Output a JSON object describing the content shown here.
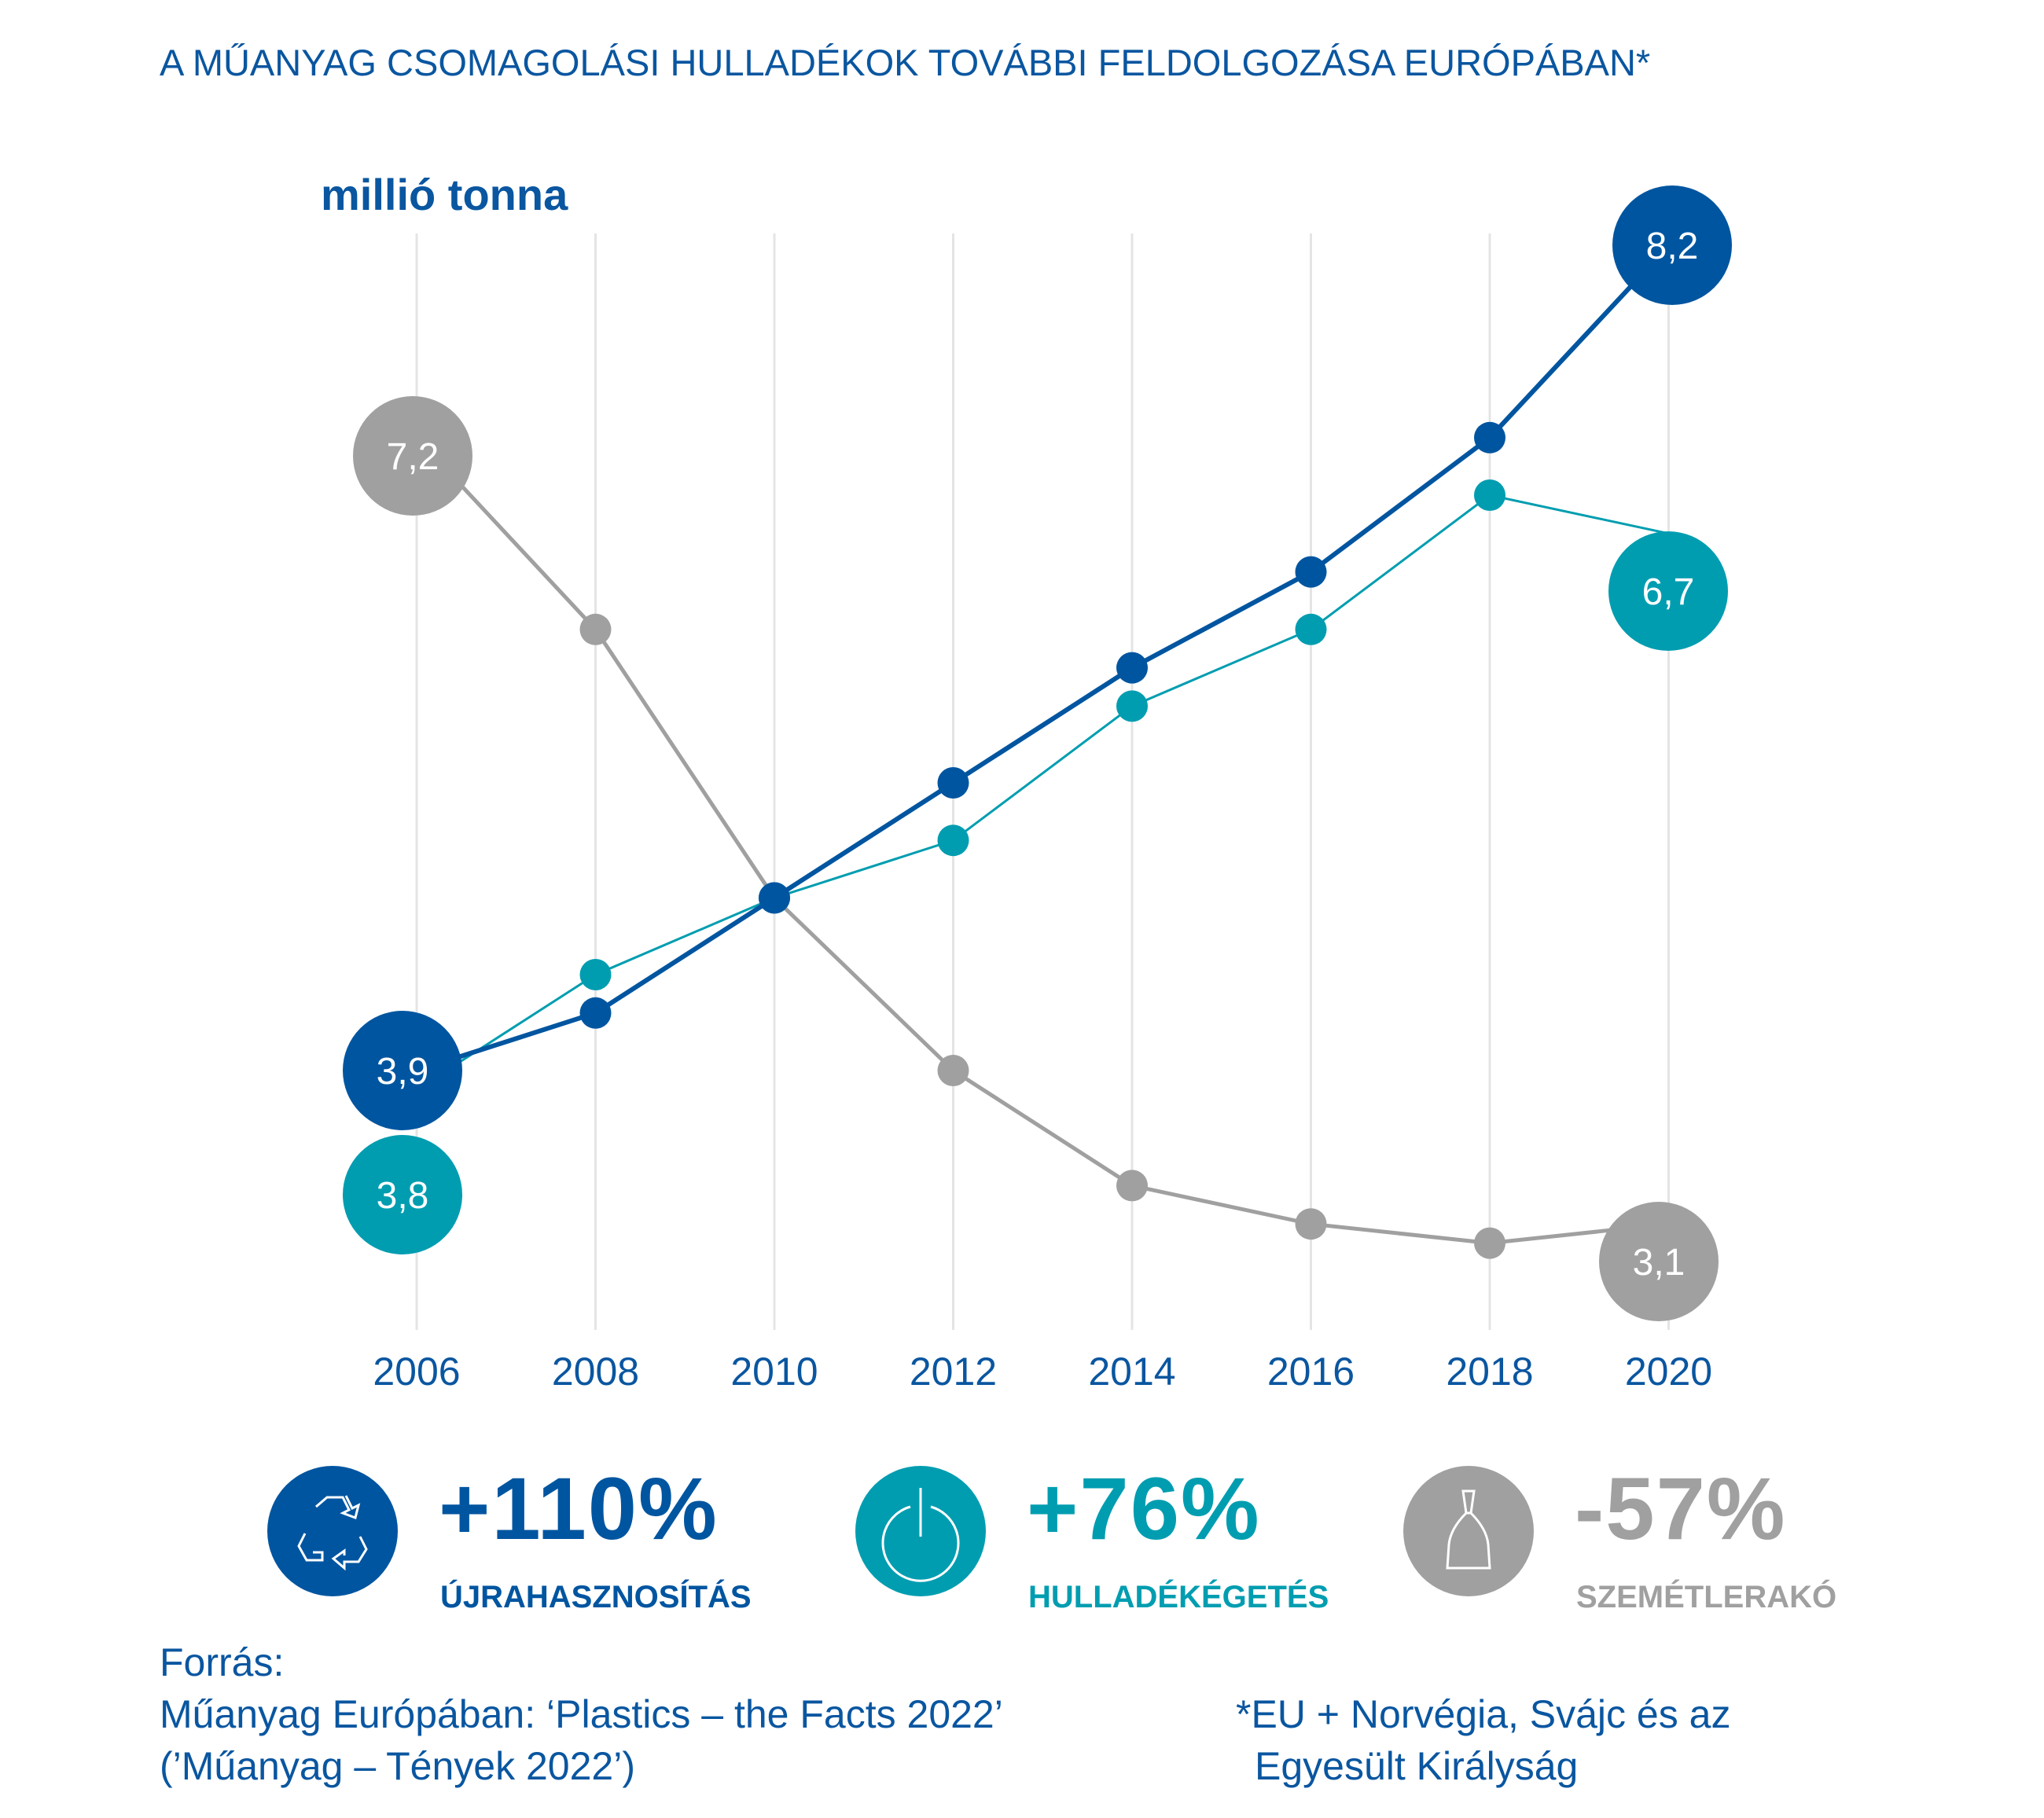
{
  "title": "A MŰANYAG CSOMAGOLÁSI HULLADÉKOK TOVÁBBI FELDOLGOZÁSA EURÓPÁBAN*",
  "colors": {
    "recycling": "#0055a0",
    "incineration": "#009db0",
    "landfill": "#a0a0a0",
    "grid": "#e4e4e4"
  },
  "chart_data": {
    "type": "line",
    "ylabel": "millió tonna",
    "x": [
      "2006",
      "2008",
      "2010",
      "2012",
      "2014",
      "2016",
      "2018",
      "2020"
    ],
    "grid": true,
    "series": [
      {
        "name": "ÚJRAHASZNOSÍTÁS",
        "key": "recycling",
        "values": [
          3.9,
          4.2,
          4.8,
          5.4,
          6.0,
          6.5,
          7.2,
          8.2
        ]
      },
      {
        "name": "HULLADÉKÉGETÉS",
        "key": "incineration",
        "values": [
          3.8,
          4.4,
          4.8,
          5.1,
          5.8,
          6.2,
          6.9,
          6.7
        ]
      },
      {
        "name": "SZEMÉTLERAKÓ",
        "key": "landfill",
        "values": [
          7.2,
          6.2,
          4.8,
          3.9,
          3.3,
          3.1,
          3.0,
          3.1
        ]
      }
    ],
    "labels": [
      {
        "series": "landfill",
        "text": "7,2"
      },
      {
        "series": "recycling",
        "text": "3,9"
      },
      {
        "series": "incineration",
        "text": "3,8"
      },
      {
        "series": "recycling",
        "text": "8,2"
      },
      {
        "series": "incineration",
        "text": "6,7"
      },
      {
        "series": "landfill",
        "text": "3,1"
      }
    ]
  },
  "stats": [
    {
      "icon": "recycle-icon",
      "value": "+110%",
      "label": "ÚJRAHASZNOSÍTÁS"
    },
    {
      "icon": "power-icon",
      "value": "+76%",
      "label": "HULLADÉKÉGETÉS"
    },
    {
      "icon": "trash-bag-icon",
      "value": "-57%",
      "label": "SZEMÉTLERAKÓ"
    }
  ],
  "source": {
    "heading": "Forrás:",
    "line1": "Műanyag Európában: ‘Plastics – the Facts 2022’",
    "line2": "(’Műanyag – Tények 2022’)"
  },
  "footnote": {
    "line1": "*EU + Norvégia, Svájc és az",
    "line2": "Egyesült Királyság"
  }
}
